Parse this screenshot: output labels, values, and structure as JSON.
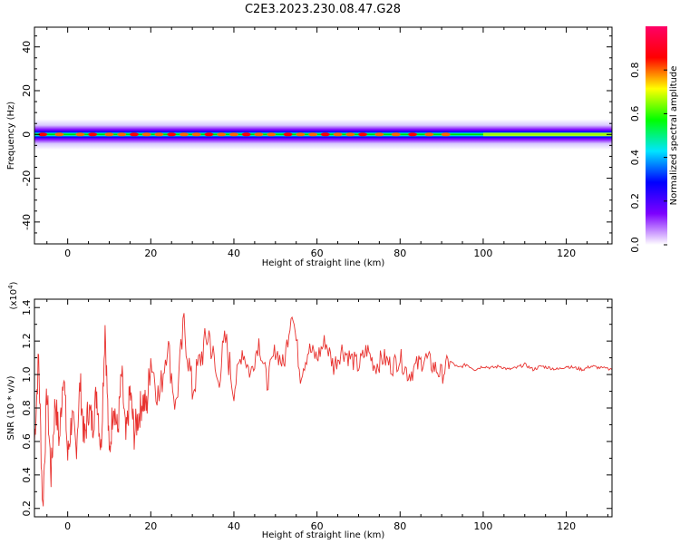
{
  "title": "C2E3.2023.230.08.47.G28",
  "chart_data": [
    {
      "type": "heatmap",
      "xlabel": "Height of straight line (km)",
      "ylabel": "Frequency (Hz)",
      "xlim": [
        -8,
        131
      ],
      "ylim": [
        -50,
        49
      ],
      "xticks": [
        0,
        20,
        40,
        60,
        80,
        100,
        120
      ],
      "yticks": [
        -40,
        -20,
        0,
        20,
        40
      ],
      "description_band": {
        "center_hz": 0,
        "strong_halfwidth_hz": 3,
        "weak_halfwidth_hz": 7
      },
      "colorbar": {
        "label": "Normalized spectral amplitude",
        "range": [
          0,
          1
        ],
        "ticks": [
          0.0,
          0.2,
          0.4,
          0.6,
          0.8
        ],
        "tick_labels": [
          "0.0",
          "0.2",
          "0.4",
          "0.6",
          "0.8"
        ],
        "colormap": [
          "#ffffff",
          "#7d00ff",
          "#0000ff",
          "#00e5ff",
          "#00ff00",
          "#ffff00",
          "#ff0000",
          "#ff0066"
        ]
      }
    },
    {
      "type": "line",
      "xlabel": "Height of straight line (km)",
      "ylabel": "SNR (10 * v/v)",
      "y_multiplier_label": "(x10",
      "y_multiplier_exp": "4",
      "xlim": [
        -8,
        131
      ],
      "ylim": [
        0.15,
        1.45
      ],
      "xticks": [
        0,
        20,
        40,
        60,
        80,
        100,
        120
      ],
      "yticks": [
        0.2,
        0.4,
        0.6,
        0.8,
        1.0,
        1.2,
        1.4
      ],
      "ytick_labels": [
        "0.2",
        "0.4",
        "0.6",
        "0.8",
        "1.0",
        "1.2",
        "1.4"
      ],
      "color": "#e8322f",
      "series": [
        {
          "x": [
            -8,
            -7,
            -6,
            -5,
            -4,
            -3,
            -2,
            -1,
            0,
            1,
            2,
            3,
            4,
            5,
            6,
            7,
            8,
            9,
            10,
            11,
            12,
            13,
            14,
            15,
            16,
            17,
            18,
            19,
            20,
            22,
            24,
            26,
            28,
            30,
            32,
            34,
            36,
            38,
            40,
            42,
            44,
            46,
            48,
            50,
            52,
            54,
            56,
            58,
            60,
            62,
            64,
            66,
            68,
            70,
            72,
            74,
            76,
            78,
            80,
            82,
            84,
            86,
            88,
            90,
            92,
            94,
            96,
            98,
            100,
            102,
            104,
            106,
            108,
            110,
            112,
            114,
            116,
            118,
            120,
            122,
            124,
            126,
            128,
            131
          ],
          "y": [
            0.6,
            1.1,
            0.2,
            0.9,
            0.4,
            0.85,
            0.6,
            1.05,
            0.5,
            0.75,
            0.55,
            0.95,
            0.6,
            0.8,
            0.7,
            0.9,
            0.55,
            1.3,
            0.5,
            0.85,
            0.65,
            1.0,
            0.6,
            0.9,
            0.65,
            0.75,
            0.85,
            0.8,
            1.1,
            0.85,
            1.2,
            0.8,
            1.3,
            0.9,
            1.1,
            1.25,
            0.95,
            1.2,
            0.9,
            1.15,
            1.0,
            1.2,
            0.95,
            1.15,
            1.05,
            1.4,
            1.0,
            1.15,
            1.1,
            1.2,
            1.05,
            1.15,
            1.1,
            1.05,
            1.15,
            1.05,
            1.1,
            1.05,
            1.1,
            1.0,
            1.05,
            1.1,
            1.05,
            1.0,
            1.08,
            1.04,
            1.06,
            1.03,
            1.05,
            1.04,
            1.05,
            1.03,
            1.04,
            1.06,
            1.03,
            1.05,
            1.04,
            1.03,
            1.05,
            1.04,
            1.03,
            1.05,
            1.04,
            1.03
          ]
        }
      ]
    }
  ]
}
